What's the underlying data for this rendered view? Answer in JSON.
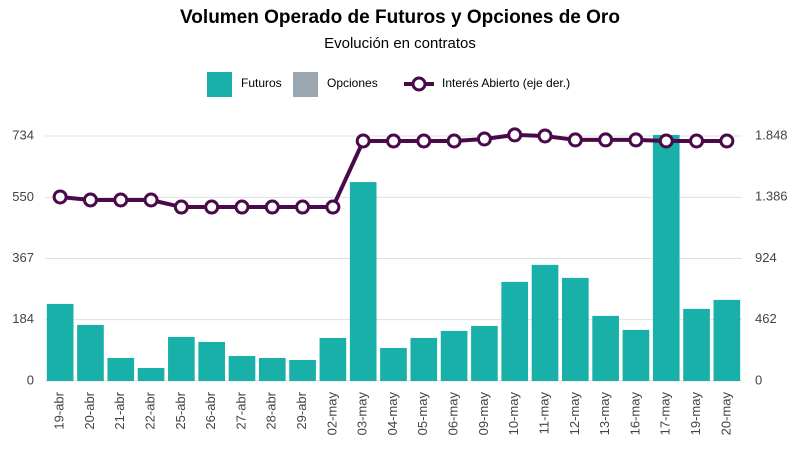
{
  "chart_data": {
    "type": "bar_line",
    "title": "Volumen Operado de Futuros y Opciones de Oro",
    "subtitle": "Evolución en contratos",
    "categories": [
      "19-abr",
      "20-abr",
      "21-abr",
      "22-abr",
      "25-abr",
      "26-abr",
      "27-abr",
      "28-abr",
      "29-abr",
      "02-may",
      "03-may",
      "04-may",
      "05-may",
      "06-may",
      "09-may",
      "10-may",
      "11-may",
      "12-may",
      "13-may",
      "16-may",
      "17-may",
      "19-may",
      "20-may"
    ],
    "series": [
      {
        "name": "Futuros",
        "color": "#1ab0aa",
        "values": [
          231,
          168,
          69,
          39,
          132,
          117,
          75,
          69,
          63,
          129,
          596,
          99,
          129,
          150,
          165,
          297,
          348,
          309,
          195,
          153,
          737,
          216,
          243
        ]
      },
      {
        "name": "Opciones",
        "color": "#9aa7b0",
        "values": [
          0,
          0,
          0,
          0,
          0,
          0,
          0,
          0,
          0,
          0,
          0,
          0,
          0,
          0,
          0,
          0,
          0,
          0,
          0,
          0,
          0,
          0,
          0
        ]
      },
      {
        "name": "Interés Abierto (eje der.)",
        "color": "#4a0a4a",
        "axis": "y2",
        "values": [
          1388,
          1365,
          1365,
          1365,
          1312,
          1312,
          1312,
          1312,
          1312,
          1312,
          1810,
          1810,
          1810,
          1810,
          1825,
          1856,
          1848,
          1818,
          1818,
          1818,
          1810,
          1810,
          1810
        ]
      }
    ],
    "ylim": [
      0,
      758
    ],
    "yticks": [
      0,
      184,
      367,
      550,
      734
    ],
    "y2lim": [
      0,
      1908
    ],
    "y2ticks": [
      0,
      {
        "value": 462,
        "label": "462"
      },
      {
        "value": 924,
        "label": "924"
      },
      {
        "value": 1386,
        "label": "1.386"
      },
      {
        "value": 1848,
        "label": "1.848"
      }
    ],
    "grid": true,
    "stacked": true
  }
}
